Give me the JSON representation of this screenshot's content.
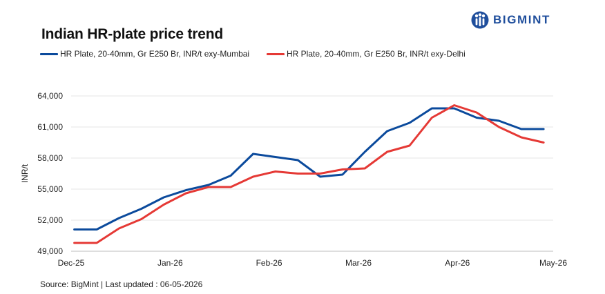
{
  "header": {
    "title": "Indian HR-plate price trend",
    "brand": "BIGMINT"
  },
  "footer": {
    "source": "Source: BigMint | Last updated : 06-05-2026"
  },
  "colors": {
    "mumbai": "#0b4a9c",
    "delhi": "#e53935",
    "grid": "#e6e6e6",
    "brand": "#1f4e9c"
  },
  "icons": {
    "brand_logo": "bigmint-logo-icon"
  },
  "chart_data": {
    "type": "line",
    "title": "Indian HR-plate price trend",
    "xlabel": "",
    "ylabel": "INR/t",
    "ylim": [
      49000,
      64000
    ],
    "yticks": [
      "49,000",
      "52,000",
      "55,000",
      "58,000",
      "61,000",
      "64,000"
    ],
    "xticks": [
      "Dec-25",
      "Jan-26",
      "Feb-26",
      "Mar-26",
      "Apr-26",
      "May-26"
    ],
    "grid": true,
    "legend_position": "top",
    "series": [
      {
        "name": "HR Plate, 20-40mm, Gr E250 Br, INR/t exy-Mumbai",
        "x": [
          "2025-12-02",
          "2025-12-09",
          "2025-12-16",
          "2025-12-23",
          "2025-12-30",
          "2026-01-06",
          "2026-01-13",
          "2026-01-20",
          "2026-01-27",
          "2026-02-03",
          "2026-02-10",
          "2026-02-17",
          "2026-02-24",
          "2026-03-03",
          "2026-03-10",
          "2026-03-17",
          "2026-03-24",
          "2026-03-31",
          "2026-04-07",
          "2026-04-14",
          "2026-04-21",
          "2026-04-28"
        ],
        "values": [
          51100,
          51100,
          52200,
          53100,
          54200,
          54900,
          55400,
          56300,
          58400,
          58100,
          57800,
          56200,
          56400,
          58600,
          60600,
          61400,
          62800,
          62800,
          61900,
          61600,
          60800,
          60800
        ]
      },
      {
        "name": "HR Plate, 20-40mm, Gr E250 Br, INR/t exy-Delhi",
        "x": [
          "2025-12-02",
          "2025-12-09",
          "2025-12-16",
          "2025-12-23",
          "2025-12-30",
          "2026-01-06",
          "2026-01-13",
          "2026-01-20",
          "2026-01-27",
          "2026-02-03",
          "2026-02-10",
          "2026-02-17",
          "2026-02-24",
          "2026-03-03",
          "2026-03-10",
          "2026-03-17",
          "2026-03-24",
          "2026-03-31",
          "2026-04-07",
          "2026-04-14",
          "2026-04-21",
          "2026-04-28"
        ],
        "values": [
          49800,
          49800,
          51200,
          52100,
          53500,
          54600,
          55200,
          55200,
          56200,
          56700,
          56500,
          56500,
          56900,
          57000,
          58600,
          59200,
          61900,
          63100,
          62400,
          61000,
          60000,
          59500
        ]
      }
    ]
  }
}
